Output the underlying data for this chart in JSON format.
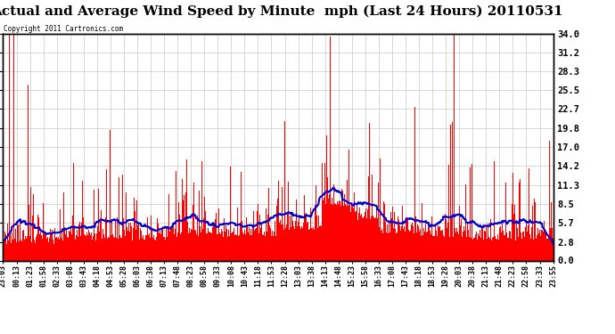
{
  "title": "Actual and Average Wind Speed by Minute  mph (Last 24 Hours) 20110531",
  "copyright": "Copyright 2011 Cartronics.com",
  "ymax": 34.0,
  "ymin": 0.0,
  "yticks": [
    0.0,
    2.8,
    5.7,
    8.5,
    11.3,
    14.2,
    17.0,
    19.8,
    22.7,
    25.5,
    28.3,
    31.2,
    34.0
  ],
  "xtick_labels": [
    "23:03",
    "00:13",
    "01:23",
    "01:58",
    "02:33",
    "03:08",
    "03:43",
    "04:18",
    "04:53",
    "05:28",
    "06:03",
    "06:38",
    "07:13",
    "07:48",
    "08:23",
    "08:58",
    "09:33",
    "10:08",
    "10:43",
    "11:18",
    "11:53",
    "12:28",
    "13:03",
    "13:38",
    "14:13",
    "14:48",
    "15:23",
    "15:58",
    "16:33",
    "17:08",
    "17:43",
    "18:18",
    "18:53",
    "19:28",
    "20:03",
    "20:38",
    "21:13",
    "21:48",
    "22:23",
    "22:58",
    "23:33",
    "23:55"
  ],
  "bar_color": "#ff0000",
  "line_color": "#0000cc",
  "background_color": "#ffffff",
  "grid_color": "#c8c8c8",
  "title_fontsize": 11,
  "border_color": "#000000",
  "seed": 42,
  "n_points": 1440,
  "avg_window": 60
}
